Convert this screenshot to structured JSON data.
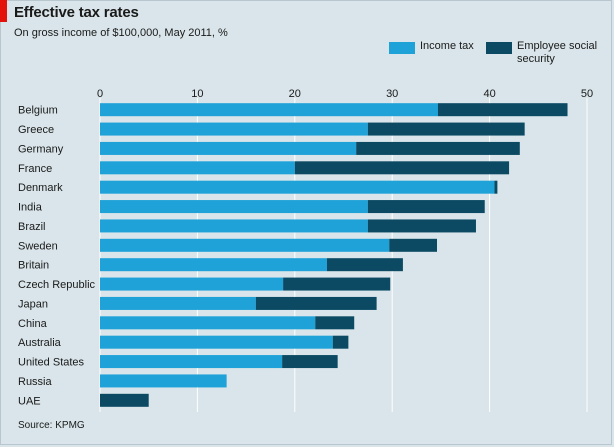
{
  "header": {
    "title": "Effective tax rates",
    "subtitle": "On gross income of $100,000, May 2011, %"
  },
  "source": "Source: KPMG",
  "colors": {
    "income_tax": "#1fa2d8",
    "social_security": "#0c4a63",
    "background": "#d9e5ea",
    "gridline": "#ffffff",
    "accent": "#e3120b"
  },
  "chart_data": {
    "type": "bar",
    "orientation": "horizontal",
    "stacked": true,
    "title": "Effective tax rates",
    "subtitle": "On gross income of $100,000, May 2011, %",
    "xlim": [
      0,
      50
    ],
    "xticks": [
      0,
      10,
      20,
      30,
      40,
      50
    ],
    "xticks_position": "top",
    "grid": true,
    "legend_position": "top-right",
    "categories": [
      "Belgium",
      "Greece",
      "Germany",
      "France",
      "Denmark",
      "India",
      "Brazil",
      "Sweden",
      "Britain",
      "Czech Republic",
      "Japan",
      "China",
      "Australia",
      "United States",
      "Russia",
      "UAE"
    ],
    "series": [
      {
        "name": "Income tax",
        "color": "#1fa2d8",
        "values": [
          34.7,
          27.5,
          26.3,
          20.0,
          40.5,
          27.5,
          27.5,
          29.7,
          23.3,
          18.8,
          16.0,
          22.1,
          23.9,
          18.7,
          13.0,
          0
        ]
      },
      {
        "name": "Employee social security",
        "color": "#0c4a63",
        "values": [
          13.3,
          16.1,
          16.8,
          22.0,
          0.3,
          12.0,
          11.1,
          4.9,
          7.8,
          11.0,
          12.4,
          4.0,
          1.6,
          5.7,
          0,
          5.0
        ]
      }
    ]
  }
}
